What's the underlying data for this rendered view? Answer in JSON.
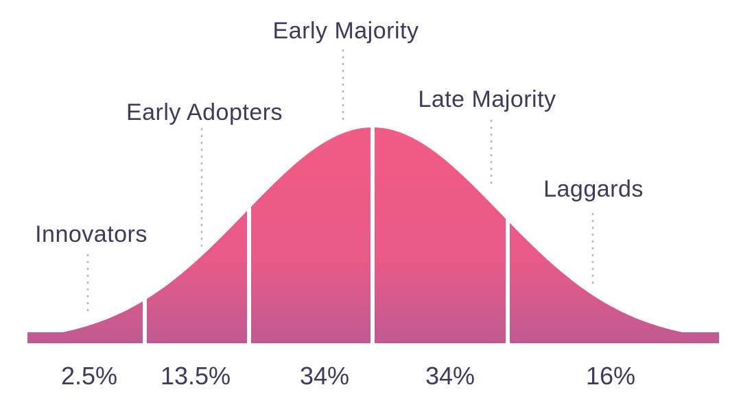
{
  "chart_data": {
    "type": "area",
    "title": "",
    "xlabel": "",
    "ylabel": "",
    "colors": {
      "fill_top": "#f05c85",
      "fill_bottom": "#c05a92",
      "text": "#3d3a5c",
      "leader": "#b9b9c2"
    },
    "series": [
      {
        "name": "Innovators",
        "value": "2.5%"
      },
      {
        "name": "Early Adopters",
        "value": "13.5%"
      },
      {
        "name": "Early Majority",
        "value": "34%"
      },
      {
        "name": "Late Majority",
        "value": "34%"
      },
      {
        "name": "Laggards",
        "value": "16%"
      }
    ],
    "segments": [
      {
        "label": "Innovators",
        "percent": 2.5
      },
      {
        "label": "Early Adopters",
        "percent": 13.5
      },
      {
        "label": "Early Majority",
        "percent": 34
      },
      {
        "label": "Late Majority",
        "percent": 34
      },
      {
        "label": "Laggards",
        "percent": 16
      }
    ]
  }
}
